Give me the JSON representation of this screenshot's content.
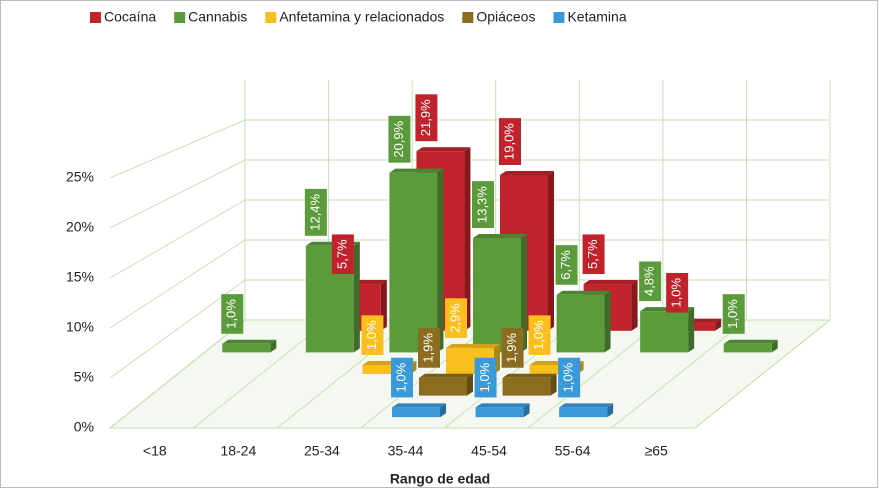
{
  "chart_data": {
    "type": "bar3d",
    "x_label": "Rango de edad",
    "categories": [
      "<18",
      "18-24",
      "25-34",
      "35-44",
      "45-54",
      "55-64",
      "≥65"
    ],
    "ylim": [
      0,
      30
    ],
    "yticks": [
      {
        "value": 0,
        "label": "0%"
      },
      {
        "value": 5,
        "label": "5%"
      },
      {
        "value": 10,
        "label": "10%"
      },
      {
        "value": 15,
        "label": "15%"
      },
      {
        "value": 20,
        "label": "20%"
      },
      {
        "value": 25,
        "label": "25%"
      }
    ],
    "grid": true,
    "legend": "top",
    "series": [
      {
        "name": "Cocaína",
        "color": "#c0232b",
        "values": [
          null,
          5.7,
          21.9,
          19.0,
          5.7,
          1.0,
          null
        ],
        "value_labels": [
          null,
          "5,7%",
          "21,9%",
          "19,0%",
          "5,7%",
          "1,0%",
          null
        ]
      },
      {
        "name": "Cannabis",
        "color": "#5b9b3c",
        "values": [
          1.0,
          12.4,
          20.9,
          13.3,
          6.7,
          4.8,
          1.0
        ],
        "value_labels": [
          "1,0%",
          "12,4%",
          "20,9%",
          "13,3%",
          "6,7%",
          "4,8%",
          "1,0%"
        ]
      },
      {
        "name": "Anfetamina y relacionados",
        "color": "#f8bf1f",
        "values": [
          null,
          null,
          1.0,
          2.9,
          1.0,
          null,
          null
        ],
        "value_labels": [
          null,
          null,
          "1,0%",
          "2,9%",
          "1,0%",
          null,
          null
        ]
      },
      {
        "name": "Opiáceos",
        "color": "#8c6d1f",
        "values": [
          null,
          null,
          null,
          1.9,
          1.9,
          null,
          null
        ],
        "value_labels": [
          null,
          null,
          null,
          "1,9%",
          "1,9%",
          null,
          null
        ]
      },
      {
        "name": "Ketamina",
        "color": "#3a9ad9",
        "values": [
          null,
          null,
          null,
          1.0,
          1.0,
          1.0,
          null
        ],
        "value_labels": [
          null,
          null,
          null,
          "1,0%",
          "1,0%",
          "1,0%",
          null
        ]
      }
    ]
  }
}
